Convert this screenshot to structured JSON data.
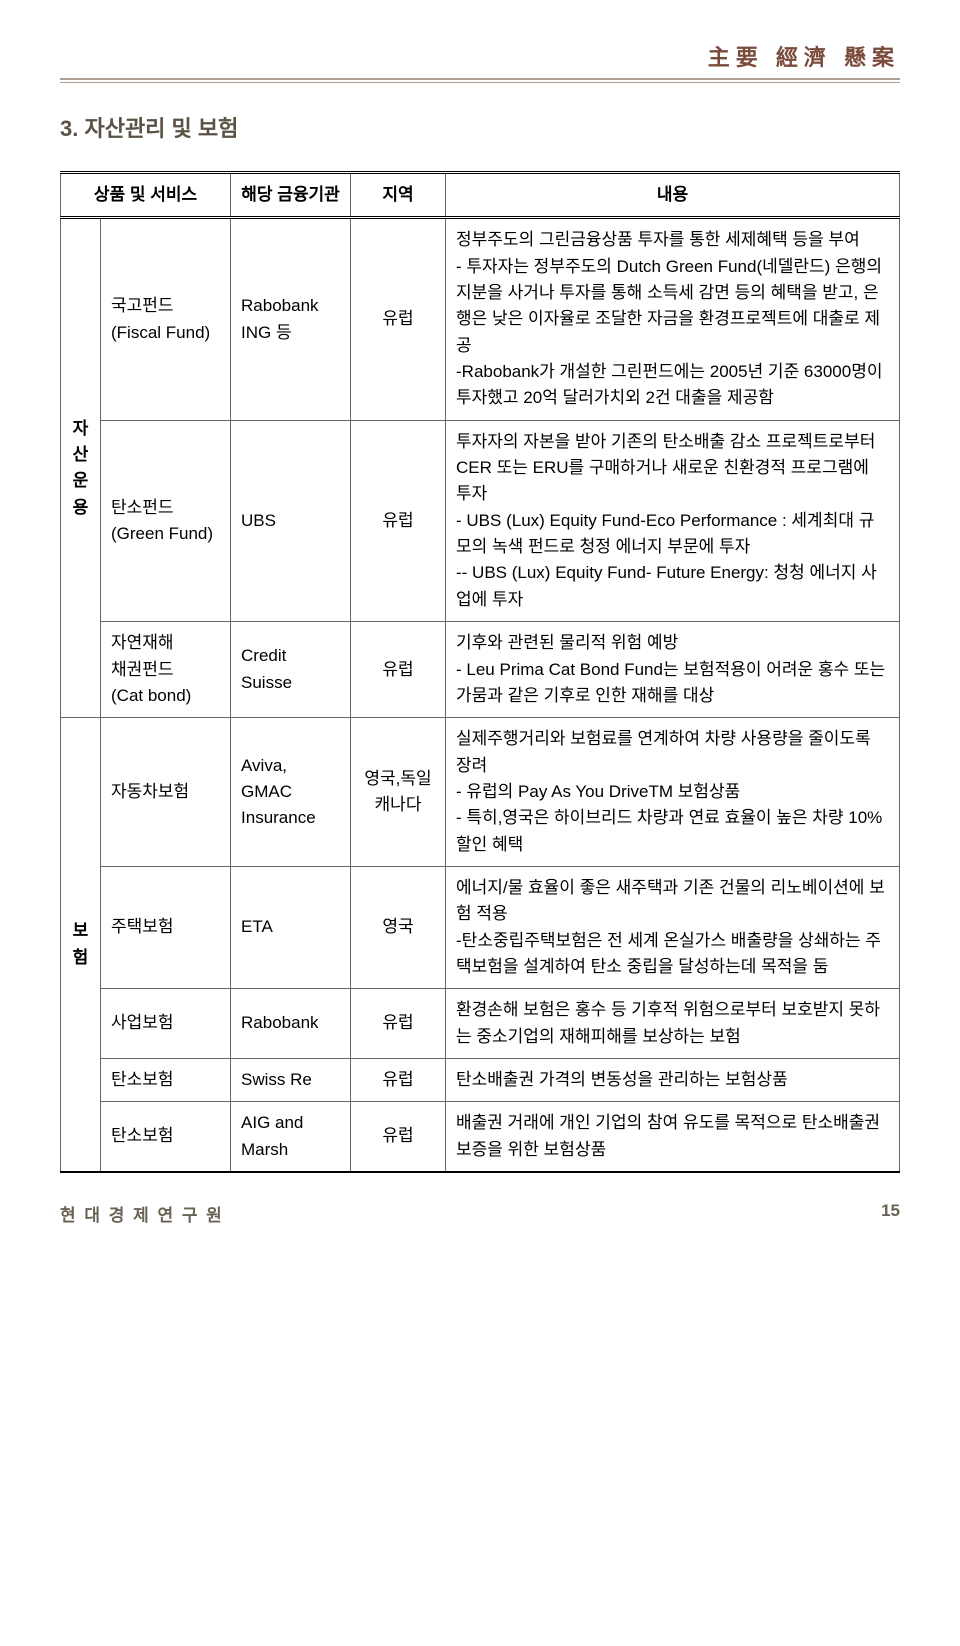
{
  "header": {
    "title": "主要 經濟 懸案"
  },
  "section": {
    "title": "3. 자산관리 및 보험"
  },
  "table": {
    "columns": [
      "",
      "상품 및 서비스",
      "해당 금융기관",
      "지역",
      "내용"
    ],
    "groups": [
      {
        "label": "자산\n운용",
        "rows": [
          {
            "product": "국고펀드\n(Fiscal Fund)",
            "institution": "Rabobank\nING 등",
            "region": "유럽",
            "description": "정부주도의 그린금융상품 투자를 통한 세제혜택 등을 부여\n- 투자자는 정부주도의 Dutch Green Fund(네델란드) 은행의 지분을 사거나 투자를 통해 소득세 감면 등의 혜택을 받고, 은행은 낮은 이자율로 조달한 자금을 환경프로젝트에 대출로 제공\n-Rabobank가 개설한 그린펀드에는 2005년 기준 63000명이 투자했고 20억 달러가치외 2건 대출을 제공함"
          },
          {
            "product": "탄소펀드\n(Green Fund)",
            "institution": "UBS",
            "region": "유럽",
            "description": "투자자의 자본을 받아 기존의 탄소배출 감소 프로젝트로부터 CER 또는 ERU를 구매하거나 새로운 친환경적 프로그램에 투자\n- UBS (Lux) Equity Fund-Eco Performance : 세계최대 규모의 녹색 펀드로 청정 에너지 부문에 투자\n-- UBS (Lux) Equity Fund- Future Energy: 청청 에너지 사업에 투자"
          },
          {
            "product": "자연재해\n채권펀드\n(Cat bond)",
            "institution": "Credit\nSuisse",
            "region": "유럽",
            "description": "기후와 관련된 물리적 위험 예방\n- Leu Prima Cat Bond Fund는 보험적용이 어려운 홍수 또는 가뭄과 같은 기후로 인한 재해를 대상"
          }
        ]
      },
      {
        "label": "보\n험",
        "rows": [
          {
            "product": "자동차보험",
            "institution": "Aviva,\nGMAC\nInsurance",
            "region": "영국,독일\n캐나다",
            "description": "실제주행거리와 보험료를 연계하여 차량 사용량을 줄이도록 장려\n- 유럽의 Pay As You DriveTM 보험상품\n- 특히,영국은 하이브리드 차량과 연료 효율이 높은 차량 10% 할인 혜택"
          },
          {
            "product": "주택보험",
            "institution": "ETA",
            "region": "영국",
            "description": "에너지/물 효율이 좋은 새주택과 기존 건물의 리노베이션에 보험 적용\n-탄소중립주택보험은 전 세계 온실가스 배출량을 상쇄하는 주택보험을 설계하여 탄소 중립을 달성하는데 목적을 둠"
          },
          {
            "product": "사업보험",
            "institution": "Rabobank",
            "region": "유럽",
            "description": "환경손해 보험은 홍수 등 기후적 위험으로부터 보호받지 못하는 중소기업의 재해피해를 보상하는 보험"
          },
          {
            "product": "탄소보험",
            "institution": "Swiss Re",
            "region": "유럽",
            "description": "탄소배출권 가격의 변동성을 관리하는 보험상품"
          },
          {
            "product": "탄소보험",
            "institution": "AIG and\nMarsh",
            "region": "유럽",
            "description": "배출권 거래에 개인 기업의 참여 유도를 목적으로 탄소배출권 보증을 위한 보험상품"
          }
        ]
      }
    ]
  },
  "footer": {
    "org": "현 대 경 제 연 구 원",
    "page": "15"
  },
  "colors": {
    "heading": "#7a4a3a",
    "rule": "#b0a090",
    "footer_text": "#6a6255",
    "border": "#666666"
  }
}
